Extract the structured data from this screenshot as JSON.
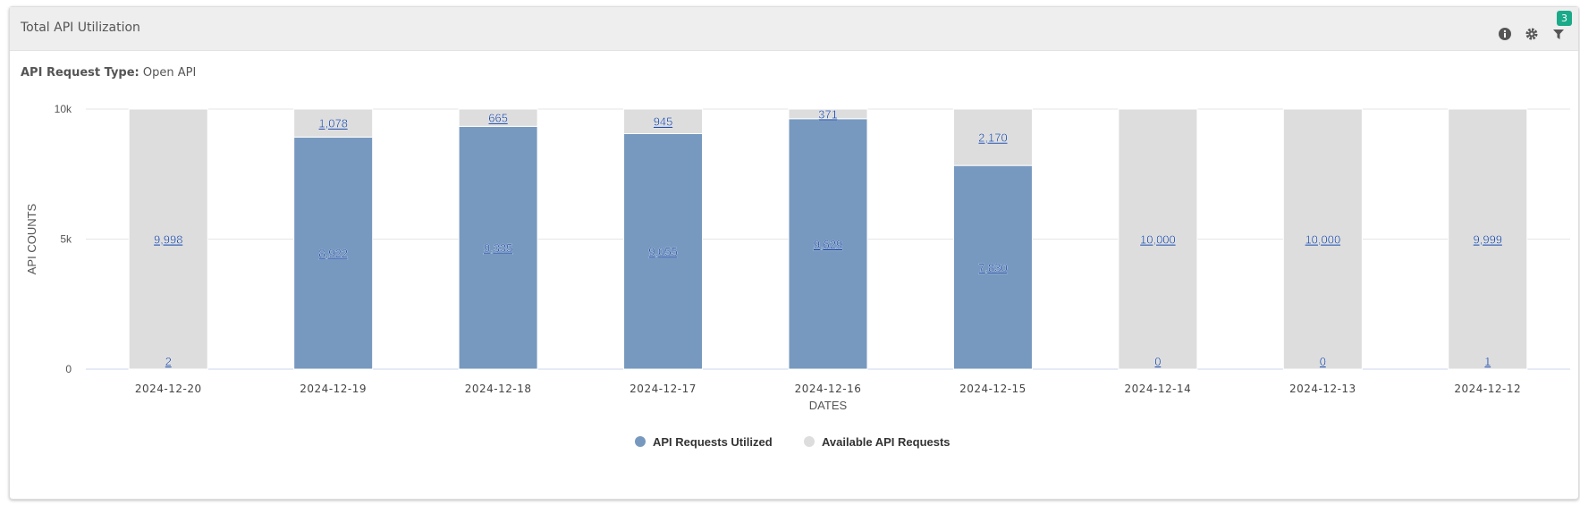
{
  "header": {
    "title": "Total API Utilization",
    "filter_count": "3",
    "icons": [
      "info-icon",
      "gear-icon",
      "filter-icon"
    ]
  },
  "filter": {
    "label": "API Request Type:",
    "value": "Open API"
  },
  "chart_data": {
    "type": "bar",
    "stacked": true,
    "categories": [
      "2024-12-20",
      "2024-12-19",
      "2024-12-18",
      "2024-12-17",
      "2024-12-16",
      "2024-12-15",
      "2024-12-14",
      "2024-12-13",
      "2024-12-12"
    ],
    "series": [
      {
        "name": "API Requests Utilized",
        "color": "#7799bf",
        "values": [
          2,
          8922,
          9335,
          9055,
          9629,
          7830,
          0,
          0,
          1
        ]
      },
      {
        "name": "Available API Requests",
        "color": "#dddddd",
        "values": [
          9998,
          1078,
          665,
          945,
          371,
          2170,
          10000,
          10000,
          9999
        ]
      }
    ],
    "xlabel": "DATES",
    "ylabel": "API COUNTS",
    "ylim": [
      0,
      10000
    ],
    "yticks": [
      {
        "v": 0,
        "label": "0"
      },
      {
        "v": 5000,
        "label": "5k"
      },
      {
        "v": 10000,
        "label": "10k"
      }
    ],
    "grid": true,
    "legend": "bottom"
  }
}
